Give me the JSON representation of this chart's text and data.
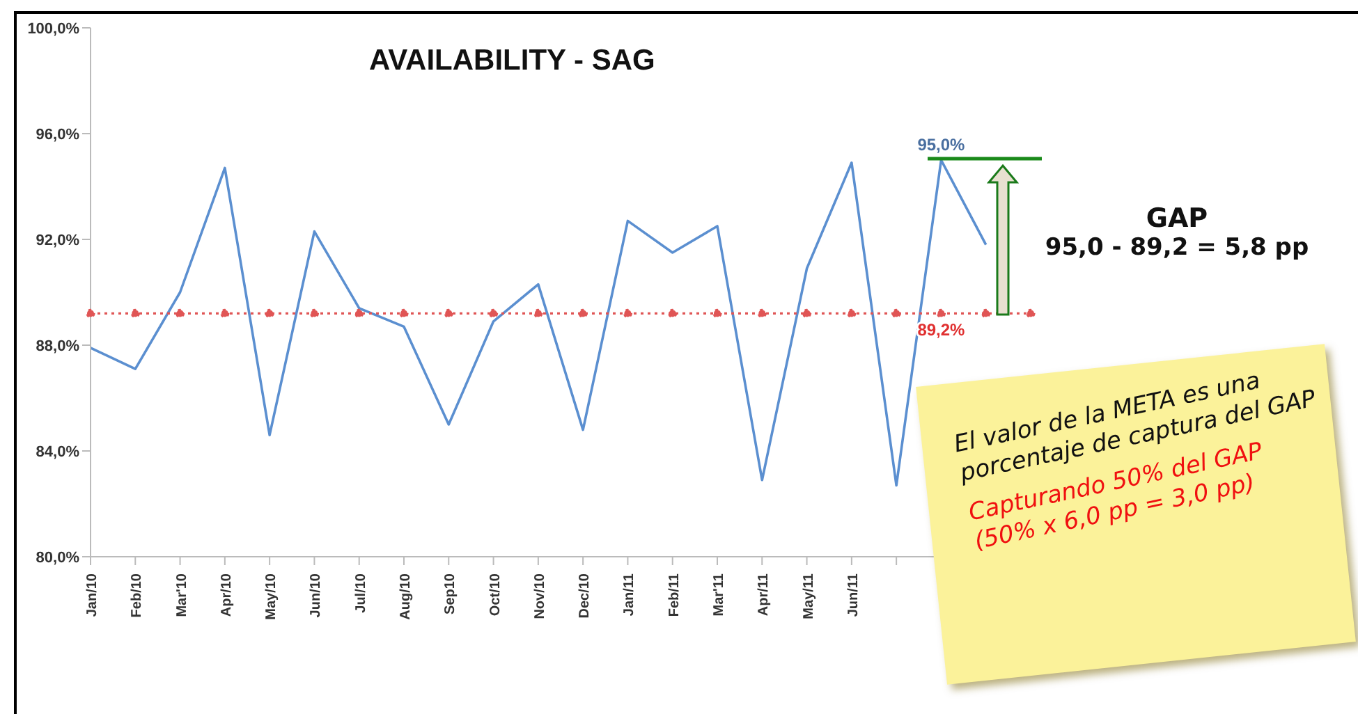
{
  "chart_data": {
    "type": "line",
    "title": "AVAILABILITY - SAG",
    "categories": [
      "Jan/10",
      "Feb/10",
      "Mar'10",
      "Apr/10",
      "May/10",
      "Jun/10",
      "Jul/10",
      "Aug/10",
      "Sep10",
      "Oct/10",
      "Nov/10",
      "Dec/10",
      "Jan/11",
      "Feb/11",
      "Mar'11",
      "Apr/11",
      "May/11",
      "Jun/11",
      null,
      null,
      null,
      null
    ],
    "series": [
      {
        "color": "#5b8fd0",
        "marker": "none",
        "line_style": "solid",
        "values": [
          87.9,
          87.1,
          90.0,
          94.7,
          84.6,
          92.3,
          89.4,
          88.7,
          85.0,
          88.9,
          90.3,
          84.8,
          92.7,
          91.5,
          92.5,
          82.9,
          90.9,
          94.9,
          82.7,
          95.0,
          91.8,
          null
        ],
        "value_labels": [
          null,
          null,
          null,
          null,
          null,
          null,
          null,
          null,
          null,
          null,
          null,
          null,
          null,
          null,
          null,
          null,
          null,
          null,
          null,
          "95,0%",
          null,
          null
        ]
      },
      {
        "color": "#e05555",
        "marker": "circle",
        "line_style": "dotted",
        "values": [
          89.2,
          89.2,
          89.2,
          89.2,
          89.2,
          89.2,
          89.2,
          89.2,
          89.2,
          89.2,
          89.2,
          89.2,
          89.2,
          89.2,
          89.2,
          89.2,
          89.2,
          89.2,
          89.2,
          89.2,
          89.2,
          89.2
        ],
        "value_labels": [
          null,
          null,
          null,
          null,
          null,
          null,
          null,
          null,
          null,
          null,
          null,
          null,
          null,
          null,
          null,
          null,
          null,
          null,
          null,
          "89,2%",
          null,
          null
        ]
      }
    ],
    "ylim": [
      80,
      100
    ],
    "yticks": [
      {
        "value": 80,
        "label": "80,0%"
      },
      {
        "value": 84,
        "label": "84,0%"
      },
      {
        "value": 88,
        "label": "88,0%"
      },
      {
        "value": 92,
        "label": "92,0%"
      },
      {
        "value": 96,
        "label": "96,0%"
      },
      {
        "value": 100,
        "label": "100,0%"
      }
    ],
    "grid": false,
    "annotations": [
      "GAP",
      "95,0 - 89,2 =  5,8 pp",
      "El valor de la META es una porcentaje de captura del GAP",
      "Capturando 50% del GAP (50% x 6,0 pp = 3,0 pp)"
    ]
  }
}
